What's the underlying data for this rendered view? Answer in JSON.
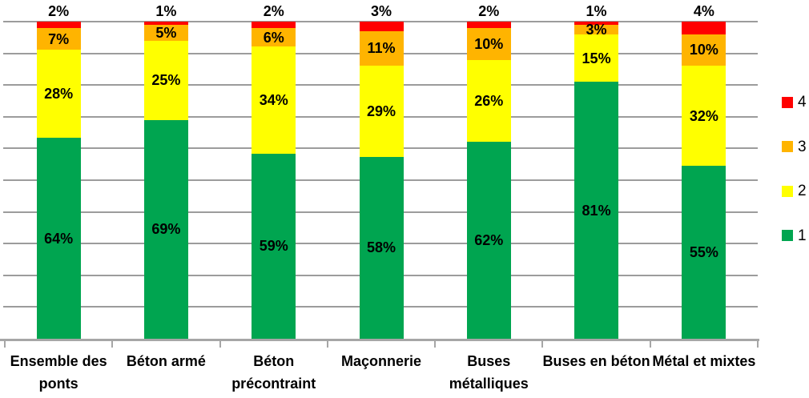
{
  "chart_data": {
    "type": "bar",
    "stacked": true,
    "orientation": "vertical",
    "title": "",
    "xlabel": "",
    "ylabel": "",
    "ylim": [
      0,
      100
    ],
    "gridline_step_percent": 10,
    "grid": true,
    "value_suffix": "%",
    "legend_position": "right",
    "legend_order_top_to_bottom": [
      "4",
      "3",
      "2",
      "1"
    ],
    "categories": [
      "Ensemble des ponts",
      "Béton armé",
      "Béton précontraint",
      "Maçonnerie",
      "Buses métalliques",
      "Buses en béton",
      "Métal et mixtes"
    ],
    "series": [
      {
        "name": "1",
        "color": "#00a550",
        "values": [
          64,
          69,
          59,
          58,
          62,
          81,
          55
        ]
      },
      {
        "name": "2",
        "color": "#ffff00",
        "values": [
          28,
          25,
          34,
          29,
          26,
          15,
          32
        ]
      },
      {
        "name": "3",
        "color": "#ffb400",
        "values": [
          7,
          5,
          6,
          11,
          10,
          3,
          10
        ]
      },
      {
        "name": "4",
        "color": "#ff0000",
        "values": [
          2,
          1,
          2,
          3,
          2,
          1,
          4
        ]
      }
    ],
    "data_labels": {
      "series_1_labels": [
        "64%",
        "69%",
        "59%",
        "58%",
        "62%",
        "81%",
        "55%"
      ],
      "series_2_labels": [
        "28%",
        "25%",
        "34%",
        "29%",
        "26%",
        "15%",
        "32%"
      ],
      "series_3_labels": [
        "7%",
        "5%",
        "6%",
        "11%",
        "10%",
        "3%",
        "10%"
      ],
      "series_4_labels": [
        "2%",
        "1%",
        "2%",
        "3%",
        "2%",
        "1%",
        "4%"
      ]
    },
    "colors": {
      "gridline": "#9c9c9c",
      "axis": "#a6a6a6",
      "label_text": "#000000",
      "background": "#ffffff"
    }
  }
}
